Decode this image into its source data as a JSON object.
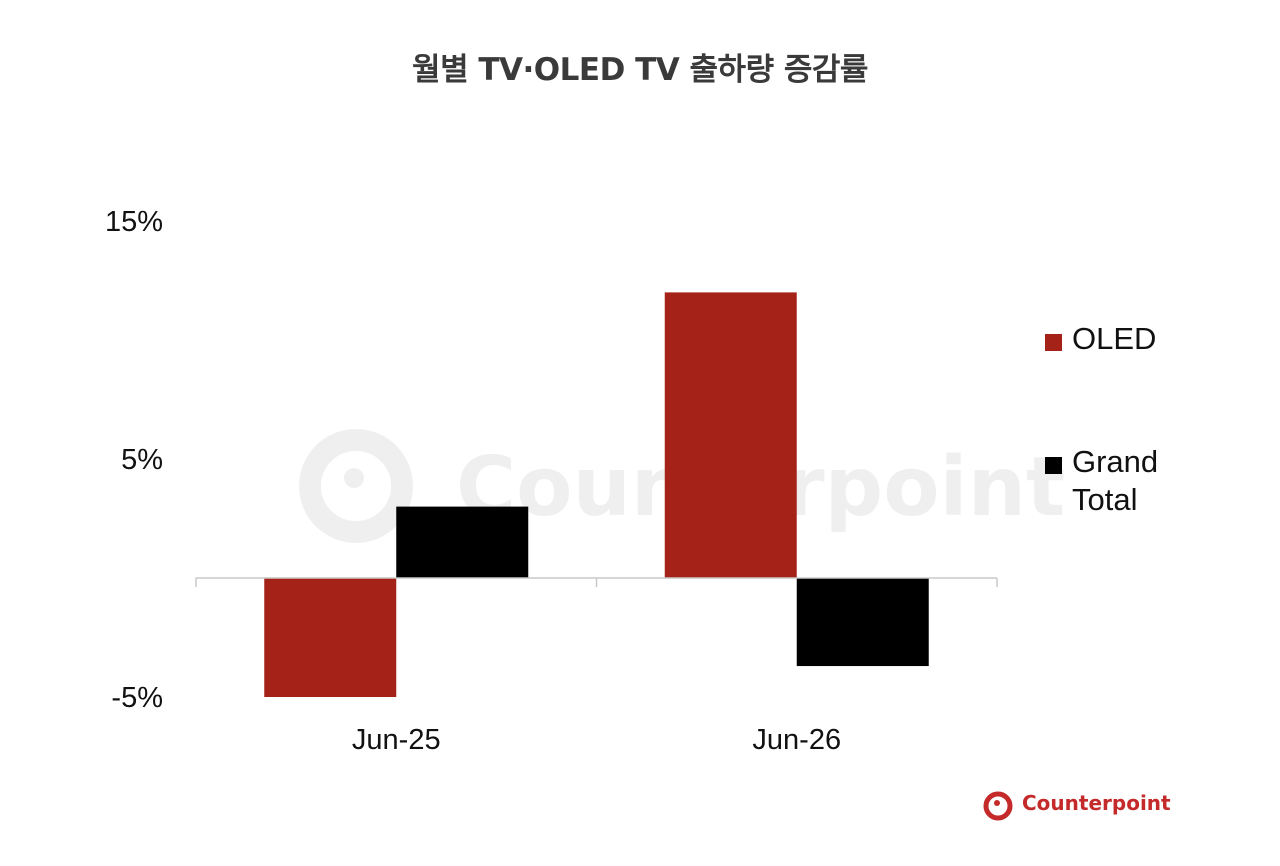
{
  "chart_data": {
    "type": "bar",
    "title": "월별 TV·OLED TV 출하량 증감률",
    "categories": [
      "Jun-25",
      "Jun-26"
    ],
    "series": [
      {
        "name": "OLED",
        "values": [
          -5,
          12
        ],
        "color": "#a52219"
      },
      {
        "name": "Grand\nTotal",
        "values": [
          3,
          -3.7
        ],
        "color": "#000000"
      }
    ],
    "y_tick_labels": [
      "15%",
      "5%",
      "-5%"
    ],
    "y_ticks": [
      15,
      5,
      -5
    ],
    "ylim": [
      -5,
      15
    ],
    "xlabel": "",
    "ylabel": "",
    "grid": false,
    "legend": "right"
  },
  "watermark": {
    "text": "Counterpoint"
  },
  "logo": {
    "text": "Counterpoint",
    "color": "#c42a2a"
  }
}
